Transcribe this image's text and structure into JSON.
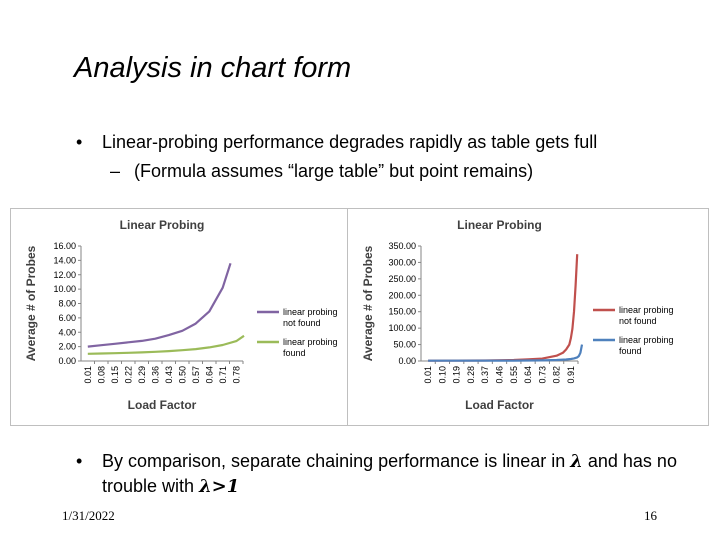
{
  "slide": {
    "title": "Analysis in chart form",
    "bullet1": "Linear-probing performance degrades rapidly as table gets full",
    "bullet2": "(Formula assumes “large table” but point remains)",
    "bullet3_part1": "By comparison, separate chaining performance is linear in ",
    "bullet3_lambda": "λ",
    "bullet3_part2": " and has no trouble with ",
    "bullet3_lambda2": "λ>1",
    "date": "1/31/2022",
    "page": "16",
    "bullet_glyph": "•",
    "dash_glyph": "–"
  },
  "chart_data": [
    {
      "type": "line",
      "title": "Linear Probing",
      "xlabel": "Load Factor",
      "ylabel": "Average # of Probes",
      "ylim": [
        0,
        16
      ],
      "yticks": [
        "0.00",
        "2.00",
        "4.00",
        "6.00",
        "8.00",
        "10.00",
        "12.00",
        "14.00",
        "16.00"
      ],
      "xticks": [
        "0.01",
        "0.08",
        "0.15",
        "0.22",
        "0.29",
        "0.36",
        "0.43",
        "0.50",
        "0.57",
        "0.64",
        "0.71",
        "0.78"
      ],
      "legend_position": "right",
      "series": [
        {
          "name": "linear probing not found",
          "color": "#8064a2",
          "x": [
            0.01,
            0.08,
            0.15,
            0.22,
            0.29,
            0.36,
            0.43,
            0.5,
            0.57,
            0.64,
            0.71,
            0.75
          ],
          "y": [
            2.0,
            2.2,
            2.4,
            2.6,
            2.8,
            3.1,
            3.6,
            4.2,
            5.2,
            6.9,
            10.2,
            13.6
          ]
        },
        {
          "name": "linear probing found",
          "color": "#9bbb59",
          "x": [
            0.01,
            0.08,
            0.15,
            0.22,
            0.29,
            0.36,
            0.43,
            0.5,
            0.57,
            0.64,
            0.71,
            0.78,
            0.82
          ],
          "y": [
            1.0,
            1.04,
            1.09,
            1.14,
            1.2,
            1.28,
            1.38,
            1.5,
            1.66,
            1.89,
            2.22,
            2.77,
            3.5
          ]
        }
      ]
    },
    {
      "type": "line",
      "title": "Linear Probing",
      "xlabel": "Load Factor",
      "ylabel": "Average # of Probes",
      "ylim": [
        0,
        350
      ],
      "yticks": [
        "0.00",
        "50.00",
        "100.00",
        "150.00",
        "200.00",
        "250.00",
        "300.00",
        "350.00"
      ],
      "xticks": [
        "0.01",
        "0.10",
        "0.19",
        "0.28",
        "0.37",
        "0.46",
        "0.55",
        "0.64",
        "0.73",
        "0.82",
        "0.91"
      ],
      "legend_position": "right",
      "series": [
        {
          "name": "linear probing not found",
          "color": "#c0504d",
          "x": [
            0.01,
            0.37,
            0.55,
            0.64,
            0.73,
            0.82,
            0.86,
            0.88,
            0.9,
            0.91,
            0.92,
            0.93,
            0.94,
            0.95
          ],
          "y": [
            1.0,
            1.6,
            3.0,
            4.8,
            7.4,
            16.0,
            25.0,
            35.0,
            50.0,
            70.0,
            98.0,
            150.0,
            230.0,
            325.0
          ]
        },
        {
          "name": "linear probing found",
          "color": "#4f81bd",
          "x": [
            0.01,
            0.55,
            0.73,
            0.82,
            0.88,
            0.91,
            0.93,
            0.95,
            0.96,
            0.97,
            0.98
          ],
          "y": [
            1.0,
            1.3,
            1.9,
            3.0,
            4.6,
            6.1,
            8.0,
            11.0,
            15.0,
            25.0,
            50.0
          ]
        }
      ]
    }
  ]
}
